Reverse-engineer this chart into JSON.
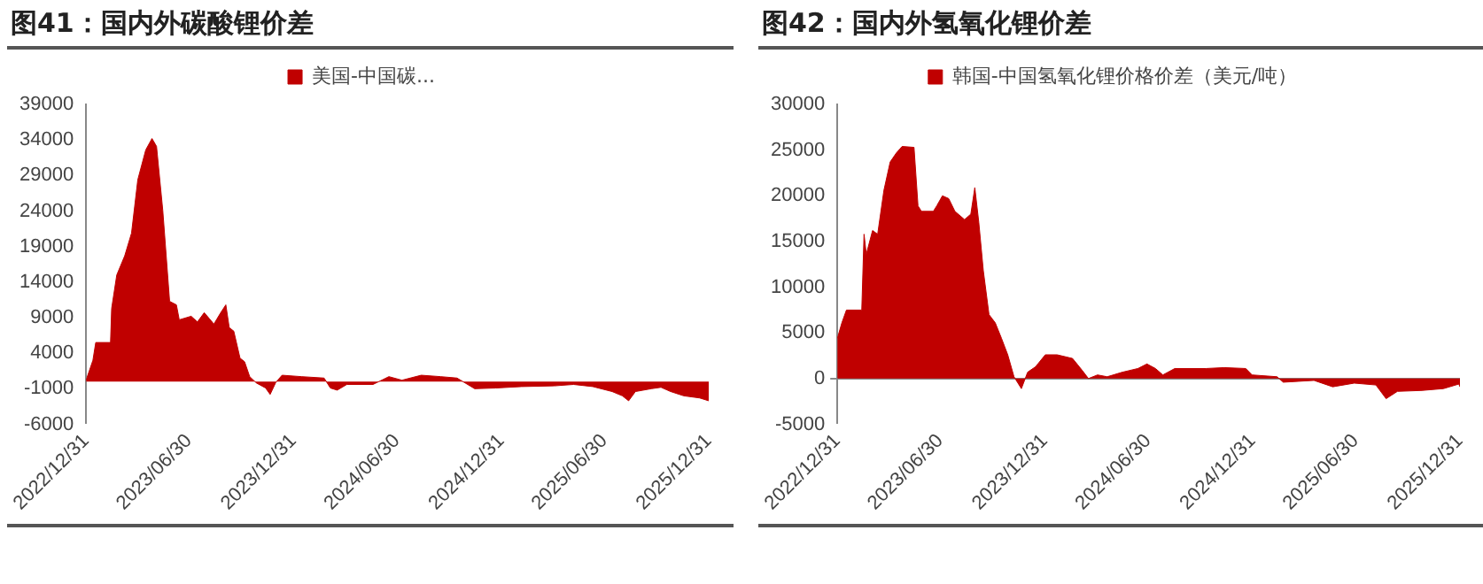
{
  "chart_data": [
    {
      "type": "area",
      "title": "图41：国内外碳酸锂价差",
      "legend": "top",
      "x": [
        "2022-12-31",
        "2023-01-12",
        "2023-01-17",
        "2023-02-12",
        "2023-02-14",
        "2023-02-23",
        "2023-03-09",
        "2023-03-21",
        "2023-04-01",
        "2023-04-15",
        "2023-04-26",
        "2023-05-04",
        "2023-05-15",
        "2023-05-27",
        "2023-06-08",
        "2023-06-13",
        "2023-07-04",
        "2023-07-15",
        "2023-07-27",
        "2023-08-13",
        "2023-08-25",
        "2023-09-03",
        "2023-09-09",
        "2023-09-17",
        "2023-09-28",
        "2023-10-06",
        "2023-10-15",
        "2023-10-27",
        "2023-11-12",
        "2023-11-20",
        "2023-11-30",
        "2023-12-11",
        "2024-01-14",
        "2024-02-23",
        "2024-03-05",
        "2024-03-17",
        "2024-04-03",
        "2024-05-19",
        "2024-06-16",
        "2024-07-09",
        "2024-08-12",
        "2024-09-15",
        "2024-10-14",
        "2024-11-14",
        "2024-12-21",
        "2025-02-04",
        "2025-04-03",
        "2025-05-07",
        "2025-06-10",
        "2025-07-14",
        "2025-08-01",
        "2025-08-12",
        "2025-08-24",
        "2025-09-21",
        "2025-10-08",
        "2025-10-25",
        "2025-11-17",
        "2025-12-15",
        "2025-12-31"
      ],
      "series": [
        {
          "name": "美国-中国碳...",
          "color": "#c00000",
          "values": [
            200,
            3000,
            5500,
            5500,
            10300,
            15000,
            17700,
            20900,
            28400,
            32600,
            34200,
            33100,
            24100,
            11300,
            10800,
            8700,
            9200,
            8400,
            9700,
            8100,
            9700,
            10800,
            7600,
            7100,
            3300,
            2800,
            700,
            -200,
            -900,
            -1800,
            -100,
            900,
            700,
            500,
            -900,
            -1200,
            -400,
            -400,
            700,
            200,
            900,
            700,
            500,
            -1000,
            -900,
            -700,
            -600,
            -400,
            -700,
            -1400,
            -2000,
            -2700,
            -1400,
            -1000,
            -800,
            -1400,
            -2000,
            -2300,
            -2700
          ]
        }
      ],
      "xlim": [
        "2022-12-31",
        "2025-12-31"
      ],
      "xticks": [
        {
          "value": "2022-12-31",
          "label": "2022/12/31"
        },
        {
          "value": "2023-06-30",
          "label": "2023/06/30"
        },
        {
          "value": "2023-12-31",
          "label": "2023/12/31"
        },
        {
          "value": "2024-06-30",
          "label": "2024/06/30"
        },
        {
          "value": "2024-12-31",
          "label": "2024/12/31"
        },
        {
          "value": "2025-06-30",
          "label": "2025/06/30"
        },
        {
          "value": "2025-12-31",
          "label": "2025/12/31"
        }
      ],
      "ylim": [
        -6000,
        39000
      ],
      "yticks": [
        -6000,
        -1000,
        4000,
        9000,
        14000,
        19000,
        24000,
        29000,
        34000,
        39000
      ]
    },
    {
      "type": "area",
      "title": "图42：国内外氢氧化锂价差",
      "legend": "top",
      "x": [
        "2022-12-31",
        "2023-01-08",
        "2023-01-16",
        "2023-02-12",
        "2023-02-16",
        "2023-02-20",
        "2023-03-03",
        "2023-03-12",
        "2023-03-23",
        "2023-04-03",
        "2023-04-14",
        "2023-04-24",
        "2023-05-15",
        "2023-05-22",
        "2023-05-28",
        "2023-06-18",
        "2023-06-24",
        "2023-07-04",
        "2023-07-15",
        "2023-07-26",
        "2023-08-12",
        "2023-08-23",
        "2023-08-30",
        "2023-09-06",
        "2023-09-14",
        "2023-09-24",
        "2023-10-05",
        "2023-10-16",
        "2023-10-27",
        "2023-11-07",
        "2023-11-20",
        "2023-12-01",
        "2023-12-15",
        "2024-01-01",
        "2024-01-22",
        "2024-02-18",
        "2024-03-06",
        "2024-03-17",
        "2024-04-02",
        "2024-04-19",
        "2024-05-16",
        "2024-06-12",
        "2024-06-28",
        "2024-07-13",
        "2024-07-26",
        "2024-08-16",
        "2024-10-10",
        "2024-11-11",
        "2024-12-19",
        "2024-12-30",
        "2025-02-12",
        "2025-02-23",
        "2025-04-18",
        "2025-05-21",
        "2025-06-28",
        "2025-08-05",
        "2025-08-23",
        "2025-09-12",
        "2025-10-25",
        "2025-12-02",
        "2025-12-29",
        "2025-12-31"
      ],
      "series": [
        {
          "name": "韩国-中国氢氧化锂价格价差（美元/吨）",
          "color": "#c00000",
          "values": [
            4400,
            6100,
            7500,
            7500,
            15800,
            13600,
            16200,
            15800,
            20600,
            23700,
            24700,
            25400,
            25300,
            18900,
            18300,
            18300,
            18900,
            20000,
            19700,
            18300,
            17400,
            18000,
            20900,
            17100,
            11800,
            7000,
            6100,
            4400,
            2600,
            200,
            -1100,
            700,
            1300,
            2600,
            2600,
            2200,
            900,
            0,
            400,
            200,
            700,
            1100,
            1600,
            1100,
            400,
            1100,
            1100,
            1200,
            1100,
            400,
            200,
            -400,
            -200,
            -900,
            -500,
            -700,
            -2200,
            -1400,
            -1300,
            -1100,
            -600,
            -900
          ]
        }
      ],
      "xlim": [
        "2022-12-31",
        "2025-12-31"
      ],
      "xticks": [
        {
          "value": "2022-12-31",
          "label": "2022/12/31"
        },
        {
          "value": "2023-06-30",
          "label": "2023/06/30"
        },
        {
          "value": "2023-12-31",
          "label": "2023/12/31"
        },
        {
          "value": "2024-06-30",
          "label": "2024/06/30"
        },
        {
          "value": "2024-12-31",
          "label": "2024/12/31"
        },
        {
          "value": "2025-06-30",
          "label": "2025/06/30"
        },
        {
          "value": "2025-12-31",
          "label": "2025/12/31"
        }
      ],
      "ylim": [
        -5000,
        30000
      ],
      "yticks": [
        -5000,
        0,
        5000,
        10000,
        15000,
        20000,
        25000,
        30000
      ]
    }
  ]
}
